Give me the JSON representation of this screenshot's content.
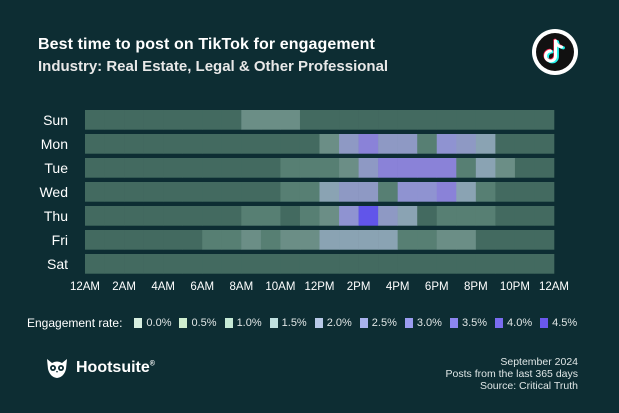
{
  "header": {
    "title": "Best time to post on TikTok for engagement",
    "subtitle": "Industry: Real Estate, Legal & Other Professional"
  },
  "chart_data": {
    "type": "heatmap",
    "title": "Best time to post on TikTok for engagement",
    "subtitle": "Industry: Real Estate, Legal & Other Professional",
    "days": [
      "Sun",
      "Mon",
      "Tue",
      "Wed",
      "Thu",
      "Fri",
      "Sat"
    ],
    "x_ticks": [
      "12AM",
      "2AM",
      "4AM",
      "6AM",
      "8AM",
      "10AM",
      "12PM",
      "2PM",
      "4PM",
      "6PM",
      "8PM",
      "10PM",
      "12AM"
    ],
    "hours": [
      0,
      1,
      2,
      3,
      4,
      5,
      6,
      7,
      8,
      9,
      10,
      11,
      12,
      13,
      14,
      15,
      16,
      17,
      18,
      19,
      20,
      21,
      22,
      23
    ],
    "unit": "%",
    "values": [
      [
        0.5,
        0.5,
        0.5,
        0.5,
        0.5,
        0.5,
        0.5,
        0.5,
        1.5,
        1.5,
        1.5,
        0.5,
        0.5,
        0.5,
        0.5,
        0.5,
        0.5,
        0.5,
        0.5,
        0.5,
        0.5,
        0.5,
        0.5,
        0.5
      ],
      [
        0.5,
        0.5,
        0.5,
        0.5,
        0.5,
        0.5,
        0.5,
        0.5,
        0.5,
        0.5,
        0.5,
        0.5,
        1.5,
        2.5,
        3.5,
        2.5,
        2.5,
        1.0,
        3.0,
        2.5,
        2.0,
        0.5,
        0.5,
        0.5
      ],
      [
        0.5,
        0.5,
        0.5,
        0.5,
        0.5,
        0.5,
        0.5,
        0.5,
        0.5,
        0.5,
        1.0,
        1.0,
        1.0,
        1.5,
        2.5,
        3.5,
        3.5,
        3.5,
        3.5,
        1.0,
        2.0,
        1.5,
        0.5,
        0.5
      ],
      [
        0.5,
        0.5,
        0.5,
        0.5,
        0.5,
        0.5,
        0.5,
        0.5,
        0.5,
        0.5,
        1.0,
        1.0,
        2.0,
        2.5,
        2.5,
        1.0,
        3.0,
        3.0,
        3.5,
        2.0,
        1.0,
        0.5,
        0.5,
        0.5
      ],
      [
        0.5,
        0.5,
        0.5,
        0.5,
        0.5,
        0.5,
        0.5,
        0.5,
        1.0,
        1.0,
        0.5,
        1.0,
        1.5,
        3.0,
        4.5,
        2.5,
        2.0,
        0.5,
        1.0,
        1.0,
        1.0,
        0.5,
        0.5,
        0.5
      ],
      [
        0.5,
        0.5,
        0.5,
        0.5,
        0.5,
        0.5,
        1.0,
        1.0,
        1.5,
        1.0,
        1.5,
        1.5,
        2.0,
        2.0,
        2.0,
        2.0,
        1.0,
        1.0,
        1.5,
        1.5,
        0.5,
        0.5,
        0.5,
        0.5
      ],
      [
        0.5,
        0.5,
        0.5,
        0.5,
        0.5,
        0.5,
        0.5,
        0.5,
        0.5,
        0.5,
        0.5,
        0.5,
        0.5,
        0.5,
        0.5,
        0.5,
        0.5,
        0.5,
        0.5,
        0.5,
        0.5,
        0.5,
        0.5,
        0.5
      ]
    ],
    "scale": [
      0.0,
      0.5,
      1.0,
      1.5,
      2.0,
      2.5,
      3.0,
      3.5,
      4.0,
      4.5
    ],
    "scale_colors": [
      "#3b5e5a",
      "#436a60",
      "#577f73",
      "#6b8e86",
      "#8aa3b3",
      "#8e99c4",
      "#8f93d1",
      "#8a82d8",
      "#7a6ee0",
      "#6155ea"
    ]
  },
  "legend": {
    "title": "Engagement rate:",
    "items": [
      {
        "label": "0.0%",
        "color": "#d7efe0"
      },
      {
        "label": "0.5%",
        "color": "#cfeecf"
      },
      {
        "label": "1.0%",
        "color": "#c6ead6"
      },
      {
        "label": "1.5%",
        "color": "#bfe0df"
      },
      {
        "label": "2.0%",
        "color": "#b8c9e8"
      },
      {
        "label": "2.5%",
        "color": "#a9b3ee"
      },
      {
        "label": "3.0%",
        "color": "#9b9cf0"
      },
      {
        "label": "3.5%",
        "color": "#8c86f0"
      },
      {
        "label": "4.0%",
        "color": "#7a6cf0"
      },
      {
        "label": "4.5%",
        "color": "#6a58ee"
      }
    ]
  },
  "brand": {
    "name": "Hootsuite",
    "reg": "®"
  },
  "footer": {
    "line1": "September 2024",
    "line2": "Posts from the last 365 days",
    "line3": "Source: Critical Truth"
  },
  "colors": {
    "background": "#0d2d33",
    "text": "#ffffff"
  }
}
